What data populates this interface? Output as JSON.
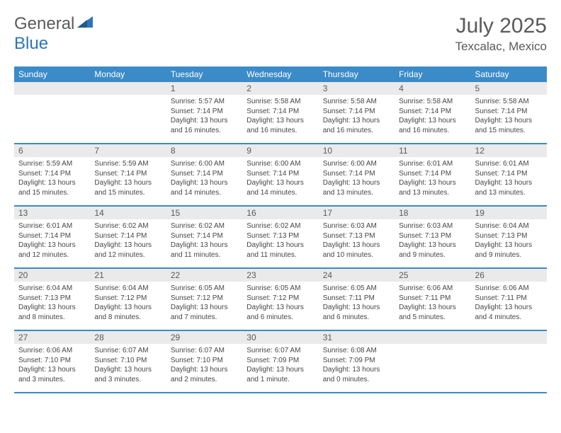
{
  "logo": {
    "text1": "General",
    "text2": "Blue"
  },
  "title": "July 2025",
  "location": "Texcalac, Mexico",
  "colors": {
    "header_bg": "#3b8bc8",
    "header_text": "#ffffff",
    "daynum_bg": "#eaeaea",
    "text_gray": "#5a5a5a",
    "body_text": "#464646",
    "logo_blue": "#2e75b6"
  },
  "fonts": {
    "title_size": 30,
    "location_size": 17,
    "dayheader_size": 12,
    "daynum_size": 12,
    "body_size": 10
  },
  "dayHeaders": [
    "Sunday",
    "Monday",
    "Tuesday",
    "Wednesday",
    "Thursday",
    "Friday",
    "Saturday"
  ],
  "weeks": [
    [
      {
        "num": "",
        "lines": []
      },
      {
        "num": "",
        "lines": []
      },
      {
        "num": "1",
        "lines": [
          "Sunrise: 5:57 AM",
          "Sunset: 7:14 PM",
          "Daylight: 13 hours",
          "and 16 minutes."
        ]
      },
      {
        "num": "2",
        "lines": [
          "Sunrise: 5:58 AM",
          "Sunset: 7:14 PM",
          "Daylight: 13 hours",
          "and 16 minutes."
        ]
      },
      {
        "num": "3",
        "lines": [
          "Sunrise: 5:58 AM",
          "Sunset: 7:14 PM",
          "Daylight: 13 hours",
          "and 16 minutes."
        ]
      },
      {
        "num": "4",
        "lines": [
          "Sunrise: 5:58 AM",
          "Sunset: 7:14 PM",
          "Daylight: 13 hours",
          "and 16 minutes."
        ]
      },
      {
        "num": "5",
        "lines": [
          "Sunrise: 5:58 AM",
          "Sunset: 7:14 PM",
          "Daylight: 13 hours",
          "and 15 minutes."
        ]
      }
    ],
    [
      {
        "num": "6",
        "lines": [
          "Sunrise: 5:59 AM",
          "Sunset: 7:14 PM",
          "Daylight: 13 hours",
          "and 15 minutes."
        ]
      },
      {
        "num": "7",
        "lines": [
          "Sunrise: 5:59 AM",
          "Sunset: 7:14 PM",
          "Daylight: 13 hours",
          "and 15 minutes."
        ]
      },
      {
        "num": "8",
        "lines": [
          "Sunrise: 6:00 AM",
          "Sunset: 7:14 PM",
          "Daylight: 13 hours",
          "and 14 minutes."
        ]
      },
      {
        "num": "9",
        "lines": [
          "Sunrise: 6:00 AM",
          "Sunset: 7:14 PM",
          "Daylight: 13 hours",
          "and 14 minutes."
        ]
      },
      {
        "num": "10",
        "lines": [
          "Sunrise: 6:00 AM",
          "Sunset: 7:14 PM",
          "Daylight: 13 hours",
          "and 13 minutes."
        ]
      },
      {
        "num": "11",
        "lines": [
          "Sunrise: 6:01 AM",
          "Sunset: 7:14 PM",
          "Daylight: 13 hours",
          "and 13 minutes."
        ]
      },
      {
        "num": "12",
        "lines": [
          "Sunrise: 6:01 AM",
          "Sunset: 7:14 PM",
          "Daylight: 13 hours",
          "and 13 minutes."
        ]
      }
    ],
    [
      {
        "num": "13",
        "lines": [
          "Sunrise: 6:01 AM",
          "Sunset: 7:14 PM",
          "Daylight: 13 hours",
          "and 12 minutes."
        ]
      },
      {
        "num": "14",
        "lines": [
          "Sunrise: 6:02 AM",
          "Sunset: 7:14 PM",
          "Daylight: 13 hours",
          "and 12 minutes."
        ]
      },
      {
        "num": "15",
        "lines": [
          "Sunrise: 6:02 AM",
          "Sunset: 7:14 PM",
          "Daylight: 13 hours",
          "and 11 minutes."
        ]
      },
      {
        "num": "16",
        "lines": [
          "Sunrise: 6:02 AM",
          "Sunset: 7:13 PM",
          "Daylight: 13 hours",
          "and 11 minutes."
        ]
      },
      {
        "num": "17",
        "lines": [
          "Sunrise: 6:03 AM",
          "Sunset: 7:13 PM",
          "Daylight: 13 hours",
          "and 10 minutes."
        ]
      },
      {
        "num": "18",
        "lines": [
          "Sunrise: 6:03 AM",
          "Sunset: 7:13 PM",
          "Daylight: 13 hours",
          "and 9 minutes."
        ]
      },
      {
        "num": "19",
        "lines": [
          "Sunrise: 6:04 AM",
          "Sunset: 7:13 PM",
          "Daylight: 13 hours",
          "and 9 minutes."
        ]
      }
    ],
    [
      {
        "num": "20",
        "lines": [
          "Sunrise: 6:04 AM",
          "Sunset: 7:13 PM",
          "Daylight: 13 hours",
          "and 8 minutes."
        ]
      },
      {
        "num": "21",
        "lines": [
          "Sunrise: 6:04 AM",
          "Sunset: 7:12 PM",
          "Daylight: 13 hours",
          "and 8 minutes."
        ]
      },
      {
        "num": "22",
        "lines": [
          "Sunrise: 6:05 AM",
          "Sunset: 7:12 PM",
          "Daylight: 13 hours",
          "and 7 minutes."
        ]
      },
      {
        "num": "23",
        "lines": [
          "Sunrise: 6:05 AM",
          "Sunset: 7:12 PM",
          "Daylight: 13 hours",
          "and 6 minutes."
        ]
      },
      {
        "num": "24",
        "lines": [
          "Sunrise: 6:05 AM",
          "Sunset: 7:11 PM",
          "Daylight: 13 hours",
          "and 6 minutes."
        ]
      },
      {
        "num": "25",
        "lines": [
          "Sunrise: 6:06 AM",
          "Sunset: 7:11 PM",
          "Daylight: 13 hours",
          "and 5 minutes."
        ]
      },
      {
        "num": "26",
        "lines": [
          "Sunrise: 6:06 AM",
          "Sunset: 7:11 PM",
          "Daylight: 13 hours",
          "and 4 minutes."
        ]
      }
    ],
    [
      {
        "num": "27",
        "lines": [
          "Sunrise: 6:06 AM",
          "Sunset: 7:10 PM",
          "Daylight: 13 hours",
          "and 3 minutes."
        ]
      },
      {
        "num": "28",
        "lines": [
          "Sunrise: 6:07 AM",
          "Sunset: 7:10 PM",
          "Daylight: 13 hours",
          "and 3 minutes."
        ]
      },
      {
        "num": "29",
        "lines": [
          "Sunrise: 6:07 AM",
          "Sunset: 7:10 PM",
          "Daylight: 13 hours",
          "and 2 minutes."
        ]
      },
      {
        "num": "30",
        "lines": [
          "Sunrise: 6:07 AM",
          "Sunset: 7:09 PM",
          "Daylight: 13 hours",
          "and 1 minute."
        ]
      },
      {
        "num": "31",
        "lines": [
          "Sunrise: 6:08 AM",
          "Sunset: 7:09 PM",
          "Daylight: 13 hours",
          "and 0 minutes."
        ]
      },
      {
        "num": "",
        "lines": []
      },
      {
        "num": "",
        "lines": []
      }
    ]
  ]
}
